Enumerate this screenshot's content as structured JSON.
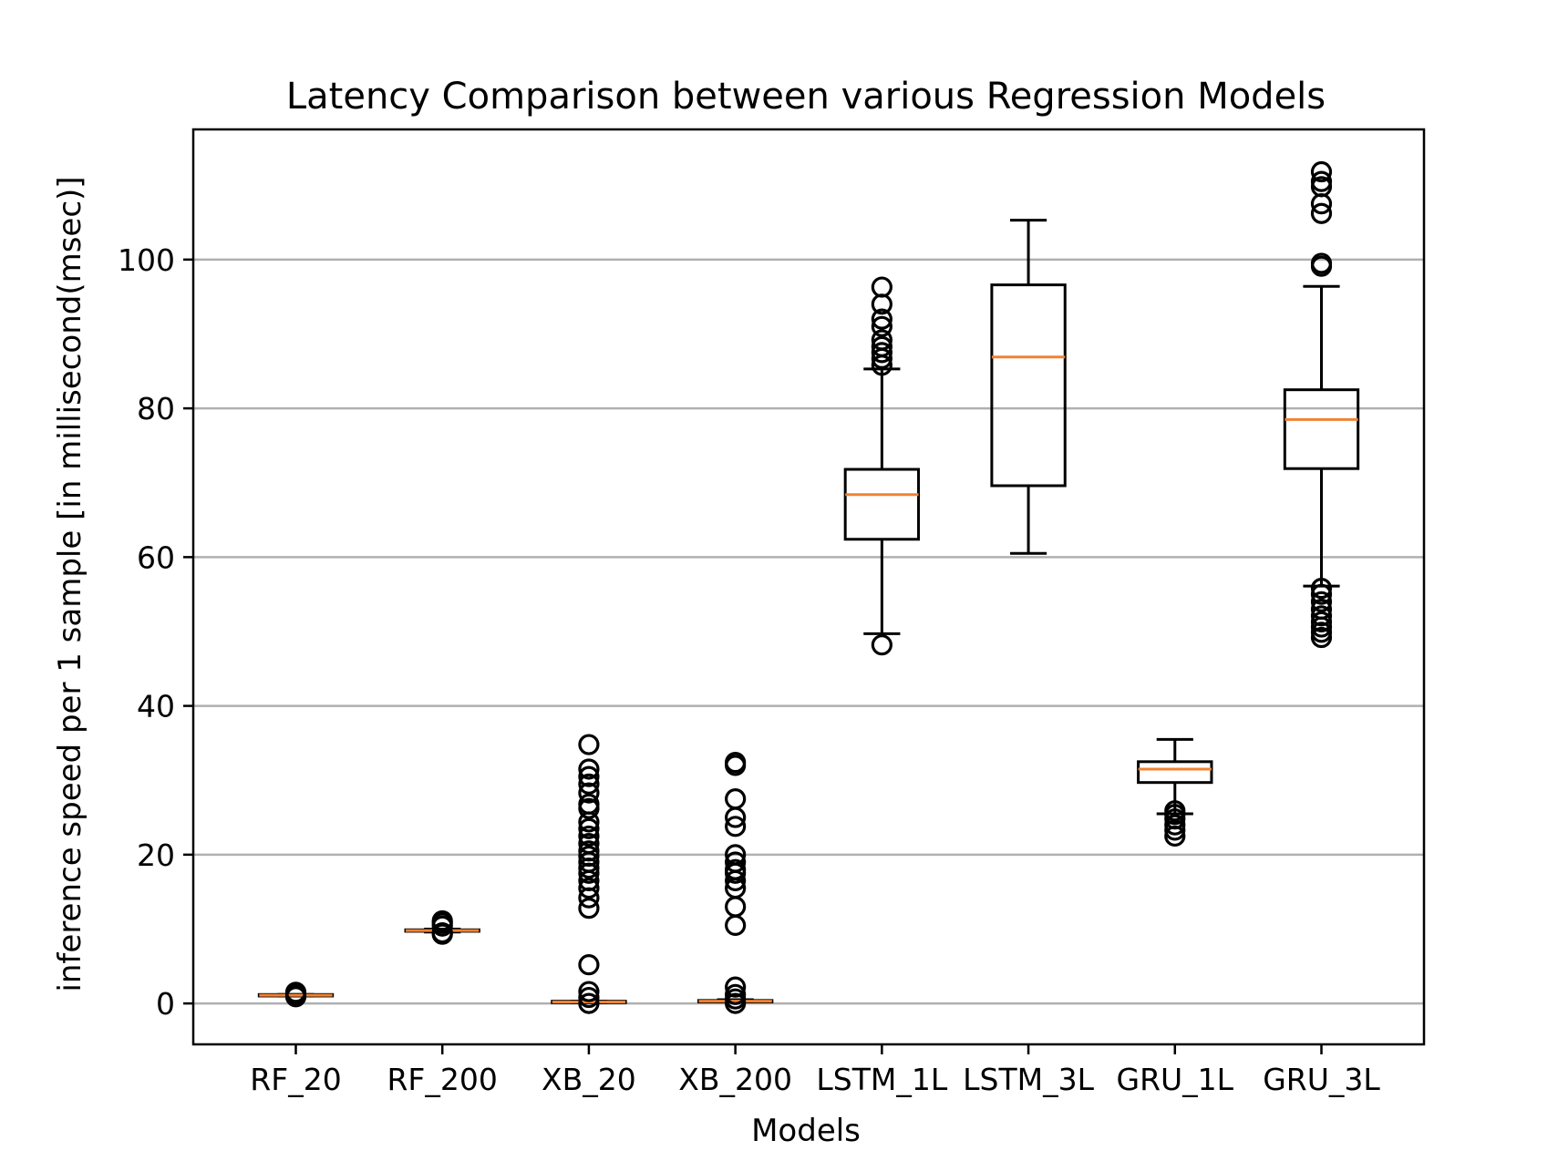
{
  "chart_data": {
    "type": "box",
    "title": "Latency Comparison between various Regression Models",
    "xlabel": "Models",
    "ylabel": "inference speed per 1 sample [in millisecond(msec)]",
    "ylim": [
      -5.5,
      117.5
    ],
    "yticks": [
      0,
      20,
      40,
      60,
      80,
      100
    ],
    "grid": "horizontal",
    "colors": {
      "box": "#000000",
      "median": "#f08232",
      "grid": "#b0b0b0"
    },
    "categories": [
      "RF_20",
      "RF_200",
      "XB_20",
      "XB_200",
      "LSTM_1L",
      "LSTM_3L",
      "GRU_1L",
      "GRU_3L"
    ],
    "boxes": [
      {
        "name": "RF_20",
        "whislo": 1.0,
        "q1": 1.0,
        "median": 1.1,
        "q3": 1.2,
        "whishi": 1.2,
        "fliers": [
          0.9,
          1.0,
          1.3,
          1.5
        ]
      },
      {
        "name": "RF_200",
        "whislo": 9.6,
        "q1": 9.7,
        "median": 9.8,
        "q3": 9.9,
        "whishi": 10.0,
        "fliers": [
          9.3,
          9.5,
          10.4,
          10.8,
          11.1
        ]
      },
      {
        "name": "XB_20",
        "whislo": 0.1,
        "q1": 0.1,
        "median": 0.2,
        "q3": 0.3,
        "whishi": 0.3,
        "fliers": [
          0.0,
          0.8,
          1.6,
          5.2,
          12.8,
          14.2,
          15.5,
          16.5,
          17.5,
          18.2,
          19.0,
          19.8,
          20.5,
          21.5,
          22.5,
          23.5,
          24.4,
          26.2,
          26.8,
          28.3,
          29.5,
          30.5,
          31.5,
          34.8
        ]
      },
      {
        "name": "XB_200",
        "whislo": 0.2,
        "q1": 0.2,
        "median": 0.3,
        "q3": 0.4,
        "whishi": 0.5,
        "fliers": [
          0.0,
          0.6,
          1.2,
          2.2,
          10.5,
          13.0,
          15.5,
          16.5,
          17.5,
          18.0,
          19.0,
          20.0,
          23.8,
          25.0,
          27.5,
          32.0,
          32.4
        ]
      },
      {
        "name": "LSTM_1L",
        "whislo": 49.7,
        "q1": 62.4,
        "median": 68.4,
        "q3": 71.8,
        "whishi": 85.3,
        "fliers": [
          48.2,
          85.8,
          86.7,
          87.5,
          88.3,
          89.2,
          91.0,
          92.0,
          94.0,
          96.3
        ]
      },
      {
        "name": "LSTM_3L",
        "whislo": 60.5,
        "q1": 69.6,
        "median": 86.9,
        "q3": 96.6,
        "whishi": 105.3,
        "fliers": []
      },
      {
        "name": "GRU_1L",
        "whislo": 25.5,
        "q1": 29.7,
        "median": 31.5,
        "q3": 32.5,
        "whishi": 35.5,
        "fliers": [
          22.5,
          23.3,
          24.0,
          24.8,
          25.4,
          25.9
        ]
      },
      {
        "name": "GRU_3L",
        "whislo": 56.1,
        "q1": 71.9,
        "median": 78.5,
        "q3": 82.5,
        "whishi": 96.4,
        "fliers": [
          49.2,
          49.9,
          50.6,
          51.3,
          52.1,
          53.0,
          54.0,
          55.0,
          55.8,
          99.1,
          99.5,
          106.2,
          107.5,
          109.8,
          110.5,
          111.8
        ]
      }
    ]
  }
}
